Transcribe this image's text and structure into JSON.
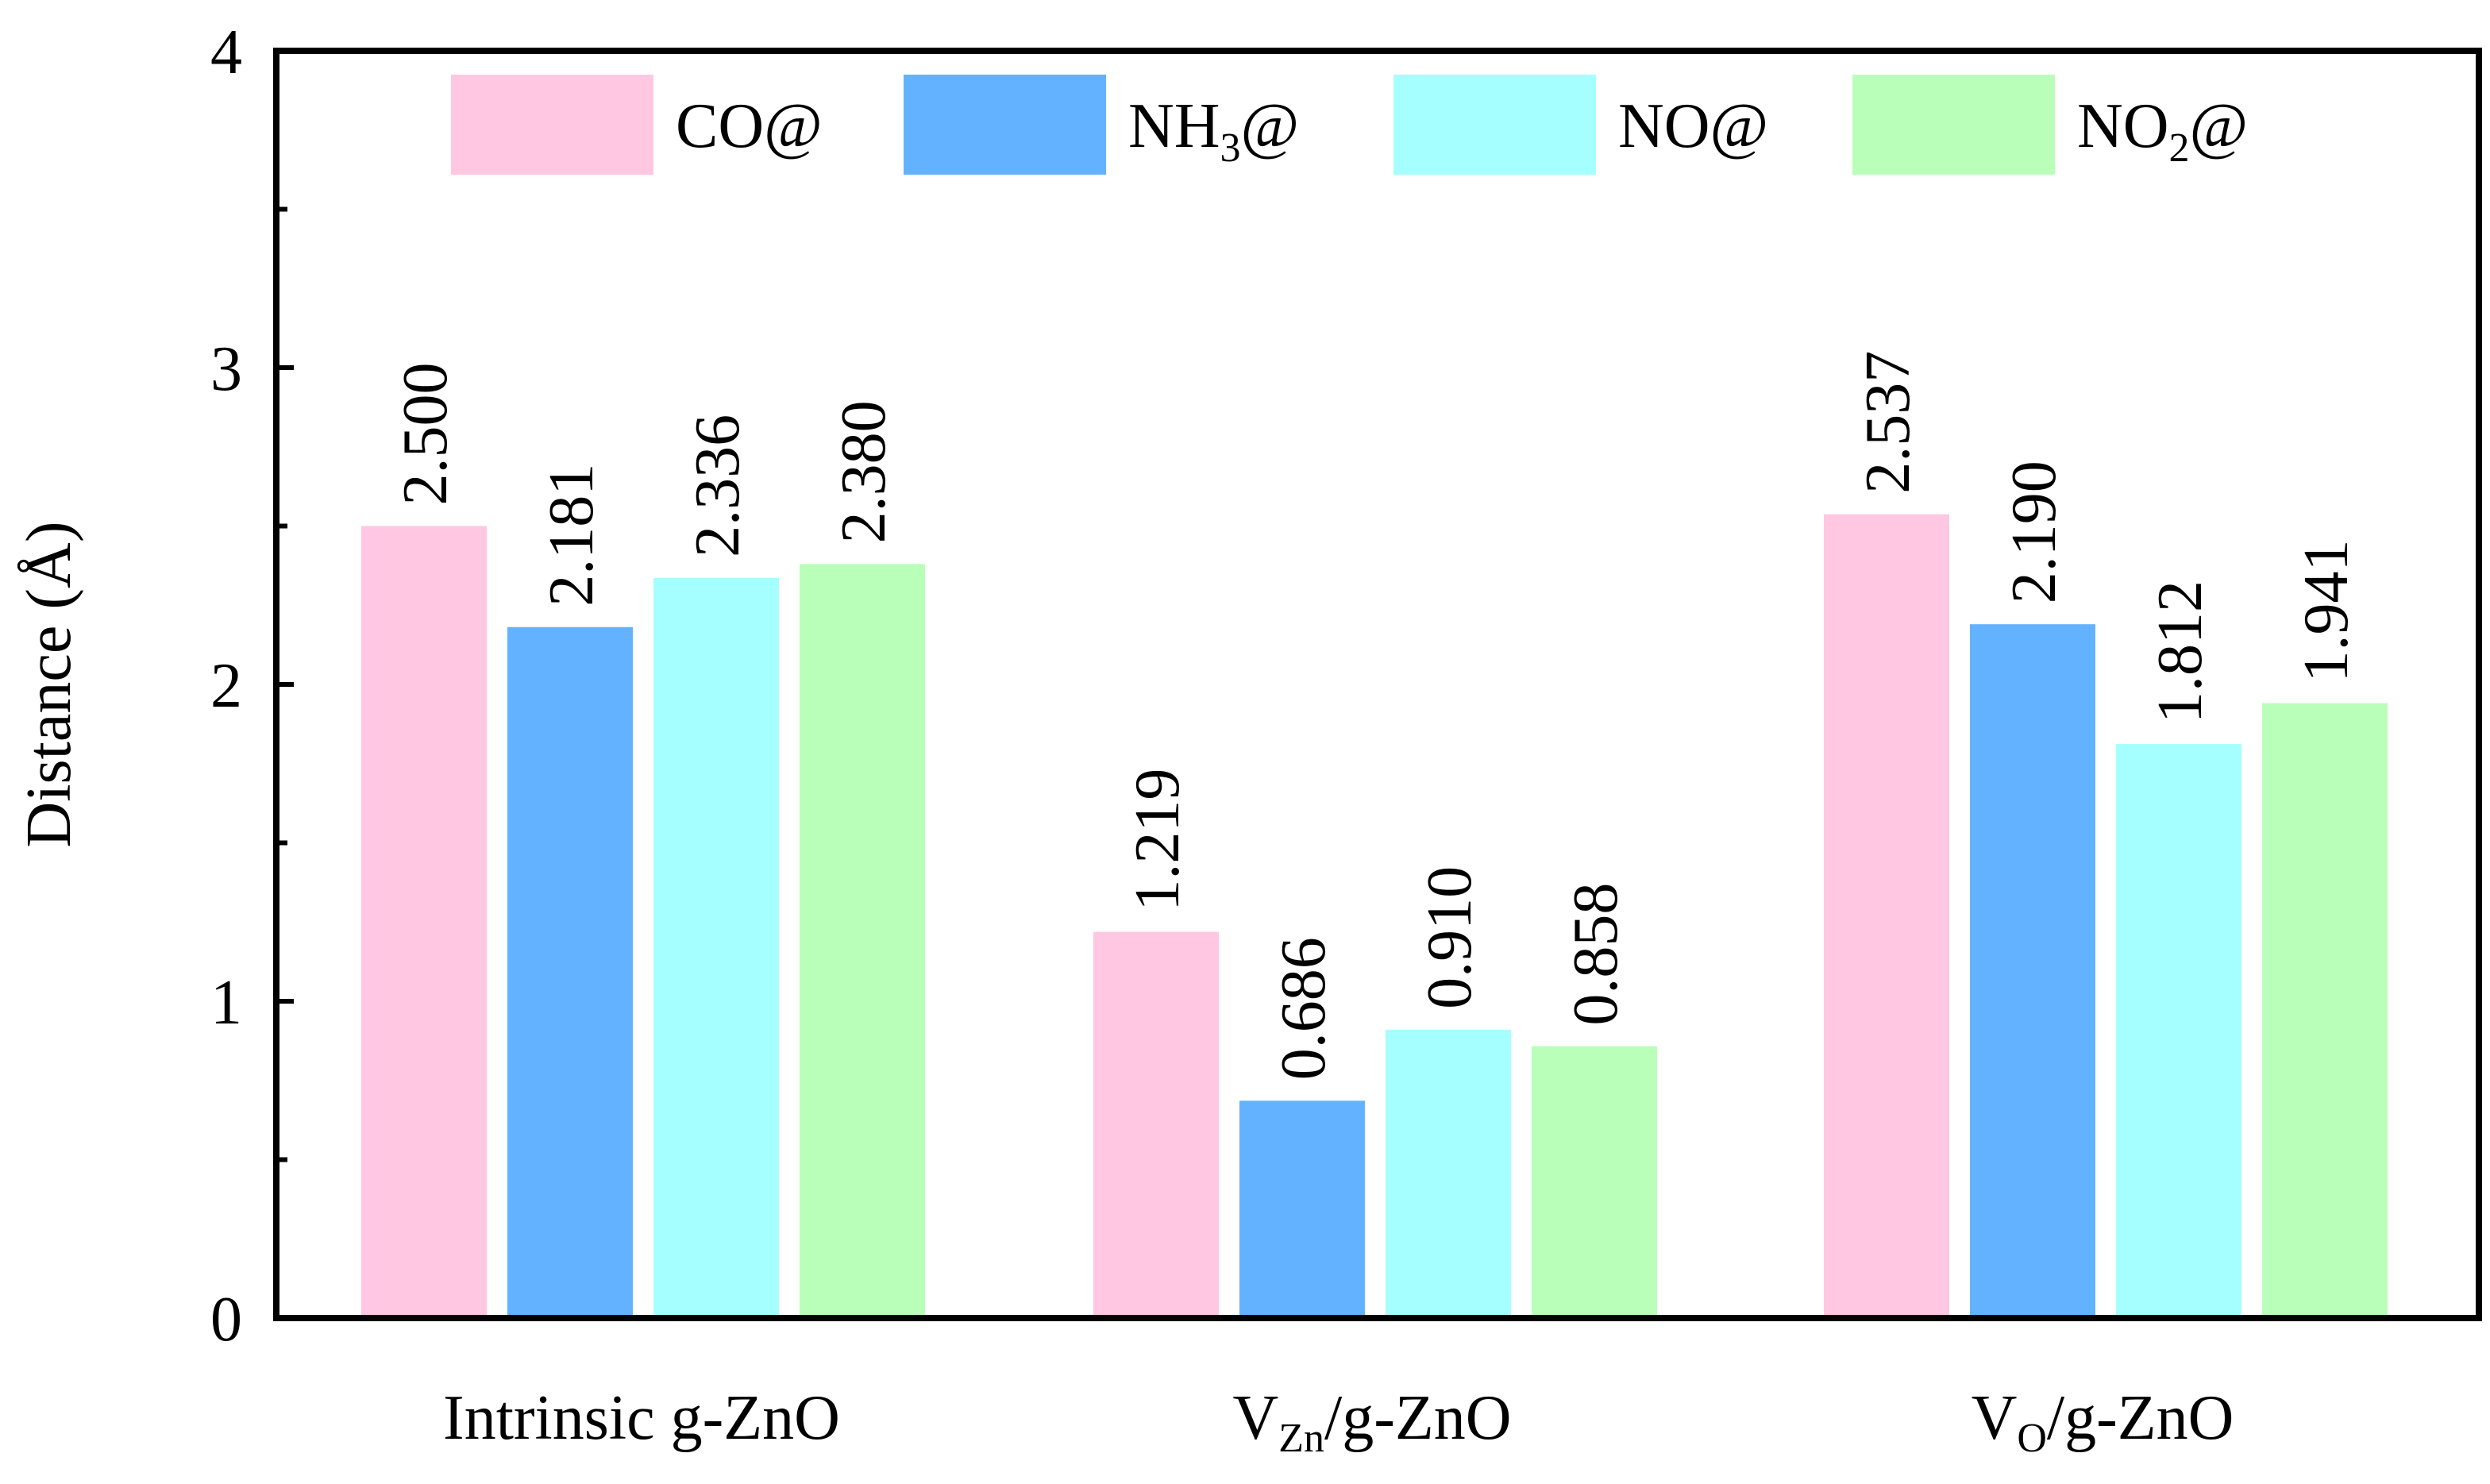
{
  "chart_data": {
    "type": "bar",
    "title": "",
    "xlabel": "",
    "ylabel": "Distance (Å)",
    "ylim": [
      0,
      4
    ],
    "yticks": [
      "0",
      "1",
      "2",
      "3",
      "4"
    ],
    "grid": false,
    "legend_position": "top",
    "categories": [
      {
        "main": "Intrinsic g-ZnO",
        "prefix": "",
        "sub": "",
        "suffix": ""
      },
      {
        "main": "",
        "prefix": "V",
        "sub": "Zn",
        "suffix": "/g-ZnO"
      },
      {
        "main": "",
        "prefix": "V",
        "sub": "O",
        "suffix": "/g-ZnO"
      }
    ],
    "series": [
      {
        "name": "CO@",
        "label_main": "CO@",
        "label_sub": "",
        "label_tail": "",
        "color": "#FFC7E1",
        "values": [
          2.5,
          1.219,
          2.537
        ],
        "labels": [
          "2.500",
          "1.219",
          "2.537"
        ]
      },
      {
        "name": "NH3@",
        "label_main": "NH",
        "label_sub": "3",
        "label_tail": "@",
        "color": "#63B2FF",
        "values": [
          2.181,
          0.686,
          2.19
        ],
        "labels": [
          "2.181",
          "0.686",
          "2.190"
        ]
      },
      {
        "name": "NO@",
        "label_main": "NO@",
        "label_sub": "",
        "label_tail": "",
        "color": "#A6FFFF",
        "values": [
          2.336,
          0.91,
          1.812
        ],
        "labels": [
          "2.336",
          "0.910",
          "1.812"
        ]
      },
      {
        "name": "NO2@",
        "label_main": "NO",
        "label_sub": "2",
        "label_tail": "@",
        "color": "#BAFFB9",
        "values": [
          2.38,
          0.858,
          1.941
        ],
        "labels": [
          "2.380",
          "0.858",
          "1.941"
        ]
      }
    ]
  }
}
